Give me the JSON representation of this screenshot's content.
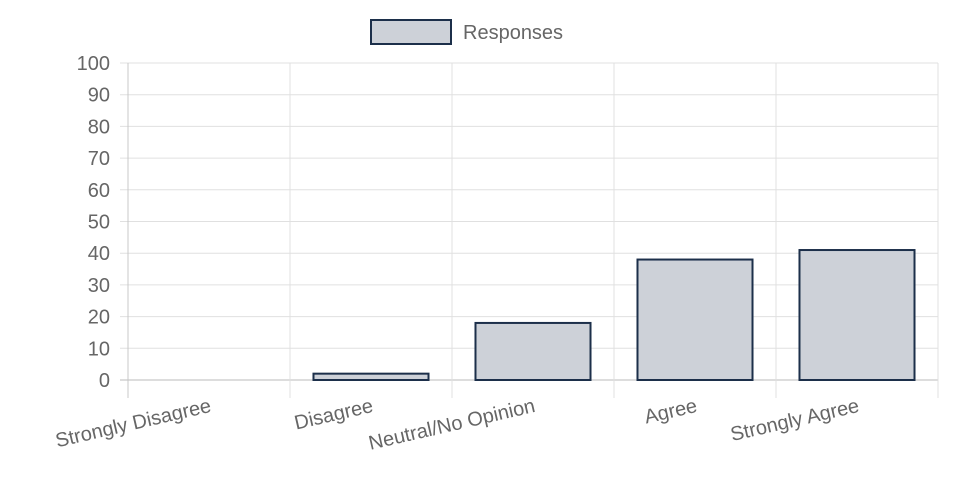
{
  "chart_data": {
    "type": "bar",
    "categories": [
      "Strongly Disagree",
      "Disagree",
      "Neutral/No Opinion",
      "Agree",
      "Strongly Agree"
    ],
    "series": [
      {
        "name": "Responses",
        "color": "#cdd1d8",
        "border_color": "#1c2f4a",
        "values": [
          0,
          2,
          18,
          38,
          41
        ]
      }
    ],
    "ylim": [
      0,
      100
    ],
    "yticks": [
      0,
      10,
      20,
      30,
      40,
      50,
      60,
      70,
      80,
      90,
      100
    ],
    "grid": true,
    "legend": "top"
  }
}
